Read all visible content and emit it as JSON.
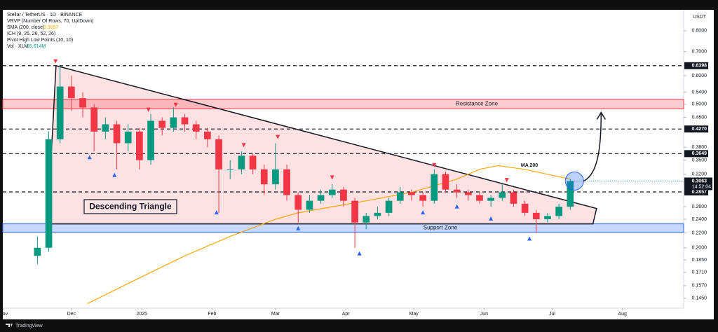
{
  "chart_data": {
    "type": "candlestick",
    "title": "Stellar / TetherUS · 1D · BINANCE",
    "indicators": [
      "VRVP (Number Of Rows, 70, Up/Down)",
      "SMA (200, close)",
      "ICH (9, 26, 26, 52, 26)",
      "Pivot High Low Points (10, 10)",
      "Vol · XLM"
    ],
    "sma_value": "0.3057",
    "volume_value": "55.614M",
    "currency": "USDT",
    "log_scale": true,
    "xlim": [
      -1.5,
      300
    ],
    "ylim": [
      0.136,
      0.91
    ],
    "xticks": [
      {
        "value": 0,
        "label": "Nov"
      },
      {
        "value": 30,
        "label": "Dec"
      },
      {
        "value": 61,
        "label": "2025"
      },
      {
        "value": 92,
        "label": "Feb"
      },
      {
        "value": 120,
        "label": "Mar"
      },
      {
        "value": 151,
        "label": "Apr"
      },
      {
        "value": 181,
        "label": "May"
      },
      {
        "value": 212,
        "label": "Jun"
      },
      {
        "value": 242,
        "label": "Jul"
      },
      {
        "value": 273,
        "label": "Aug"
      }
    ],
    "yticks": [
      {
        "value": 0.8,
        "label": "0.8000"
      },
      {
        "value": 0.7,
        "label": "0.7000"
      },
      {
        "value": 0.6,
        "label": "0.6000"
      },
      {
        "value": 0.54,
        "label": "0.5400"
      },
      {
        "value": 0.5,
        "label": "0.5000"
      },
      {
        "value": 0.46,
        "label": "0.4600"
      },
      {
        "value": 0.38,
        "label": "0.3800"
      },
      {
        "value": 0.35,
        "label": "0.3500"
      },
      {
        "value": 0.32,
        "label": "0.3200"
      },
      {
        "value": 0.26,
        "label": "0.2600"
      },
      {
        "value": 0.24,
        "label": "0.2400"
      },
      {
        "value": 0.22,
        "label": "0.2200"
      },
      {
        "value": 0.2,
        "label": "0.2000"
      },
      {
        "value": 0.185,
        "label": "0.1850"
      },
      {
        "value": 0.171,
        "label": "0.1710"
      },
      {
        "value": 0.157,
        "label": "0.1570"
      },
      {
        "value": 0.145,
        "label": "0.1450"
      }
    ],
    "levels": [
      {
        "value": 0.6398,
        "label": "0.6398"
      },
      {
        "value": 0.427,
        "label": "0.4270"
      },
      {
        "value": 0.3649,
        "label": "0.3649"
      },
      {
        "value": 0.2857,
        "label": "0.2857"
      }
    ],
    "last_price": {
      "value": 0.3063,
      "label": "0.3063"
    },
    "countdown": "14:52:04",
    "up_color": "#089981",
    "down_color": "#f23645",
    "x": [
      15,
      20,
      25,
      30,
      35,
      40,
      45,
      50,
      55,
      60,
      65,
      70,
      75,
      80,
      85,
      90,
      95,
      100,
      105,
      110,
      115,
      120,
      125,
      130,
      135,
      140,
      145,
      150,
      155,
      160,
      165,
      170,
      175,
      180,
      185,
      190,
      195,
      200,
      205,
      210,
      215,
      220,
      225,
      230,
      235,
      240,
      245,
      250
    ],
    "open": [
      0.19,
      0.2,
      0.4,
      0.56,
      0.52,
      0.49,
      0.42,
      0.44,
      0.39,
      0.42,
      0.35,
      0.45,
      0.43,
      0.46,
      0.44,
      0.42,
      0.4,
      0.33,
      0.33,
      0.36,
      0.33,
      0.3,
      0.33,
      0.28,
      0.255,
      0.27,
      0.28,
      0.29,
      0.27,
      0.235,
      0.245,
      0.25,
      0.27,
      0.285,
      0.28,
      0.27,
      0.32,
      0.29,
      0.285,
      0.28,
      0.27,
      0.275,
      0.285,
      0.265,
      0.25,
      0.24,
      0.245,
      0.26
    ],
    "high": [
      0.215,
      0.42,
      0.6398,
      0.6,
      0.54,
      0.5,
      0.46,
      0.45,
      0.44,
      0.43,
      0.47,
      0.46,
      0.49,
      0.47,
      0.45,
      0.43,
      0.41,
      0.35,
      0.37,
      0.365,
      0.34,
      0.39,
      0.34,
      0.285,
      0.28,
      0.29,
      0.3,
      0.295,
      0.275,
      0.25,
      0.26,
      0.275,
      0.295,
      0.29,
      0.285,
      0.33,
      0.325,
      0.3,
      0.29,
      0.285,
      0.28,
      0.3,
      0.29,
      0.27,
      0.255,
      0.25,
      0.265,
      0.31
    ],
    "low": [
      0.18,
      0.195,
      0.39,
      0.48,
      0.46,
      0.37,
      0.4,
      0.33,
      0.37,
      0.33,
      0.34,
      0.41,
      0.42,
      0.42,
      0.4,
      0.38,
      0.25,
      0.31,
      0.32,
      0.32,
      0.28,
      0.29,
      0.27,
      0.235,
      0.25,
      0.265,
      0.275,
      0.26,
      0.2,
      0.225,
      0.24,
      0.245,
      0.265,
      0.27,
      0.26,
      0.265,
      0.285,
      0.275,
      0.27,
      0.265,
      0.26,
      0.27,
      0.26,
      0.245,
      0.22,
      0.235,
      0.24,
      0.255
    ],
    "close": [
      0.2,
      0.4,
      0.56,
      0.52,
      0.49,
      0.42,
      0.44,
      0.39,
      0.42,
      0.35,
      0.45,
      0.43,
      0.46,
      0.44,
      0.42,
      0.4,
      0.33,
      0.33,
      0.36,
      0.33,
      0.3,
      0.33,
      0.28,
      0.255,
      0.27,
      0.28,
      0.29,
      0.27,
      0.235,
      0.245,
      0.25,
      0.27,
      0.285,
      0.28,
      0.27,
      0.32,
      0.29,
      0.285,
      0.28,
      0.27,
      0.275,
      0.285,
      0.265,
      0.25,
      0.24,
      0.245,
      0.26,
      0.3063
    ],
    "ma200": {
      "label": "MA 200",
      "color": "#f7a600",
      "x": [
        37,
        60,
        80,
        100,
        120,
        130,
        160,
        180,
        200,
        210,
        218,
        230,
        250
      ],
      "values": [
        0.14,
        0.165,
        0.19,
        0.215,
        0.24,
        0.25,
        0.27,
        0.285,
        0.31,
        0.33,
        0.338,
        0.33,
        0.31
      ]
    },
    "pivot_highs": {
      "x": [
        23,
        64,
        76,
        106,
        121,
        145,
        190,
        222
      ],
      "values": [
        0.64,
        0.47,
        0.485,
        0.375,
        0.395,
        0.305,
        0.33,
        0.3
      ]
    },
    "pivot_lows": {
      "x": [
        38,
        49,
        94,
        130,
        157,
        185,
        200,
        215,
        232
      ],
      "values": [
        0.37,
        0.33,
        0.26,
        0.235,
        0.2,
        0.26,
        0.27,
        0.25,
        0.22
      ]
    },
    "resistance_zone": {
      "label": "Resistance Zone",
      "range": [
        0.486,
        0.516
      ]
    },
    "support_zone": {
      "label": "Support Zone",
      "range": [
        0.221,
        0.233
      ]
    },
    "triangle": {
      "label": "Descending Triangle",
      "x": [
        19.5,
        23.2,
        261.6,
        260
      ],
      "values": [
        0.233,
        0.6398,
        0.257,
        0.233
      ]
    },
    "brand": "TradingView"
  }
}
